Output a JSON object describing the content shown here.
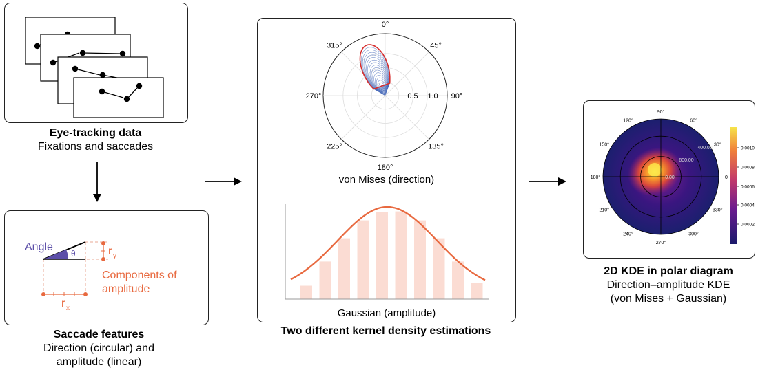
{
  "eye_tracking": {
    "title": "Eye-tracking data",
    "subtitle": "Fixations and saccades"
  },
  "saccade_features": {
    "title": "Saccade features",
    "subtitle_line1": "Direction (circular) and",
    "subtitle_line2": "amplitude (linear)",
    "angle_label": "Angle",
    "theta_label": "θ",
    "ry_label": "r",
    "ry_sub": "y",
    "rx_label": "r",
    "rx_sub": "x",
    "components_line1": "Components of",
    "components_line2": "amplitude"
  },
  "kde_panel": {
    "title": "Two different kernel density estimations",
    "von_mises_caption": "von Mises (direction)",
    "gaussian_caption": "Gaussian (amplitude)",
    "polar_angle_labels": [
      "0°",
      "45°",
      "90°",
      "135°",
      "180°",
      "225°",
      "270°",
      "315°"
    ],
    "radial_labels": [
      "0.5",
      "1.0"
    ]
  },
  "kde2d": {
    "title": "2D KDE in polar diagram",
    "subtitle_line1": "Direction–amplitude KDE",
    "subtitle_line2": "(von Mises + Gaussian)",
    "angle_labels": [
      "90°",
      "60°",
      "30°",
      "0",
      "330°",
      "300°",
      "270°",
      "240°",
      "210°",
      "180°",
      "150°",
      "120°"
    ],
    "radial_labels": [
      "0.00",
      "400.00",
      "600.00"
    ],
    "colorbar_ticks": [
      "0.0010",
      "0.0008",
      "0.0006",
      "0.0004",
      "0.0002"
    ]
  },
  "colors": {
    "orange": "#e8693f",
    "purple": "#5b4ea8",
    "vonmises_red": "#d62d2d",
    "vonmises_blue": "#3a5fb5",
    "bar_fill": "#fbdcd3"
  },
  "chart_data": [
    {
      "type": "polar",
      "name": "von Mises (direction)",
      "angle_ticks_deg": [
        0,
        45,
        90,
        135,
        180,
        225,
        270,
        315
      ],
      "r_ticks": [
        0.5,
        1.0
      ],
      "peak_direction_deg": 340,
      "peak_density": 1.1
    },
    {
      "type": "bar",
      "name": "Gaussian (amplitude)",
      "values": [
        0.15,
        0.42,
        0.68,
        0.88,
        0.97,
        0.98,
        0.88,
        0.68,
        0.42,
        0.18
      ],
      "curve": "gaussian"
    }
  ]
}
